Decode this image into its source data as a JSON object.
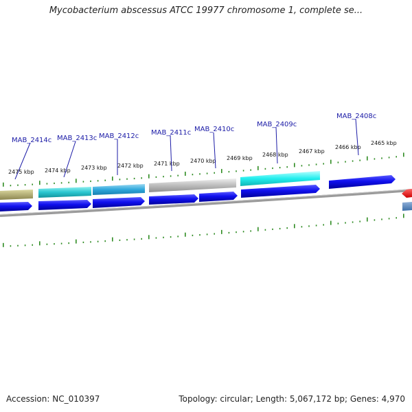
{
  "title": "Mycobacterium abscessus ATCC 19977 chromosome 1, complete se...",
  "footer": {
    "accession": "Accession: NC_010397",
    "summary": "Topology: circular; Length: 5,067,172 bp; Genes: 4,970"
  },
  "colors": {
    "forward_gene": "#0a0ae6",
    "ruler_tick": "#2e8b22",
    "backbone": "#8a8a8a",
    "label_line": "#1a1aa6",
    "red_gene": "#ee1111"
  },
  "ruler_labels": [
    "2475 kbp",
    "2474 kbp",
    "2473 kbp",
    "2472 kbp",
    "2471 kbp",
    "2470 kbp",
    "2469 kbp",
    "2468 kbp",
    "2467 kbp",
    "2466 kbp",
    "2465 kbp"
  ],
  "gene_labels": [
    "MAB_2414c",
    "MAB_2413c",
    "MAB_2412c",
    "MAB_2411c",
    "MAB_2410c",
    "MAB_2409c",
    "MAB_2408c"
  ]
}
